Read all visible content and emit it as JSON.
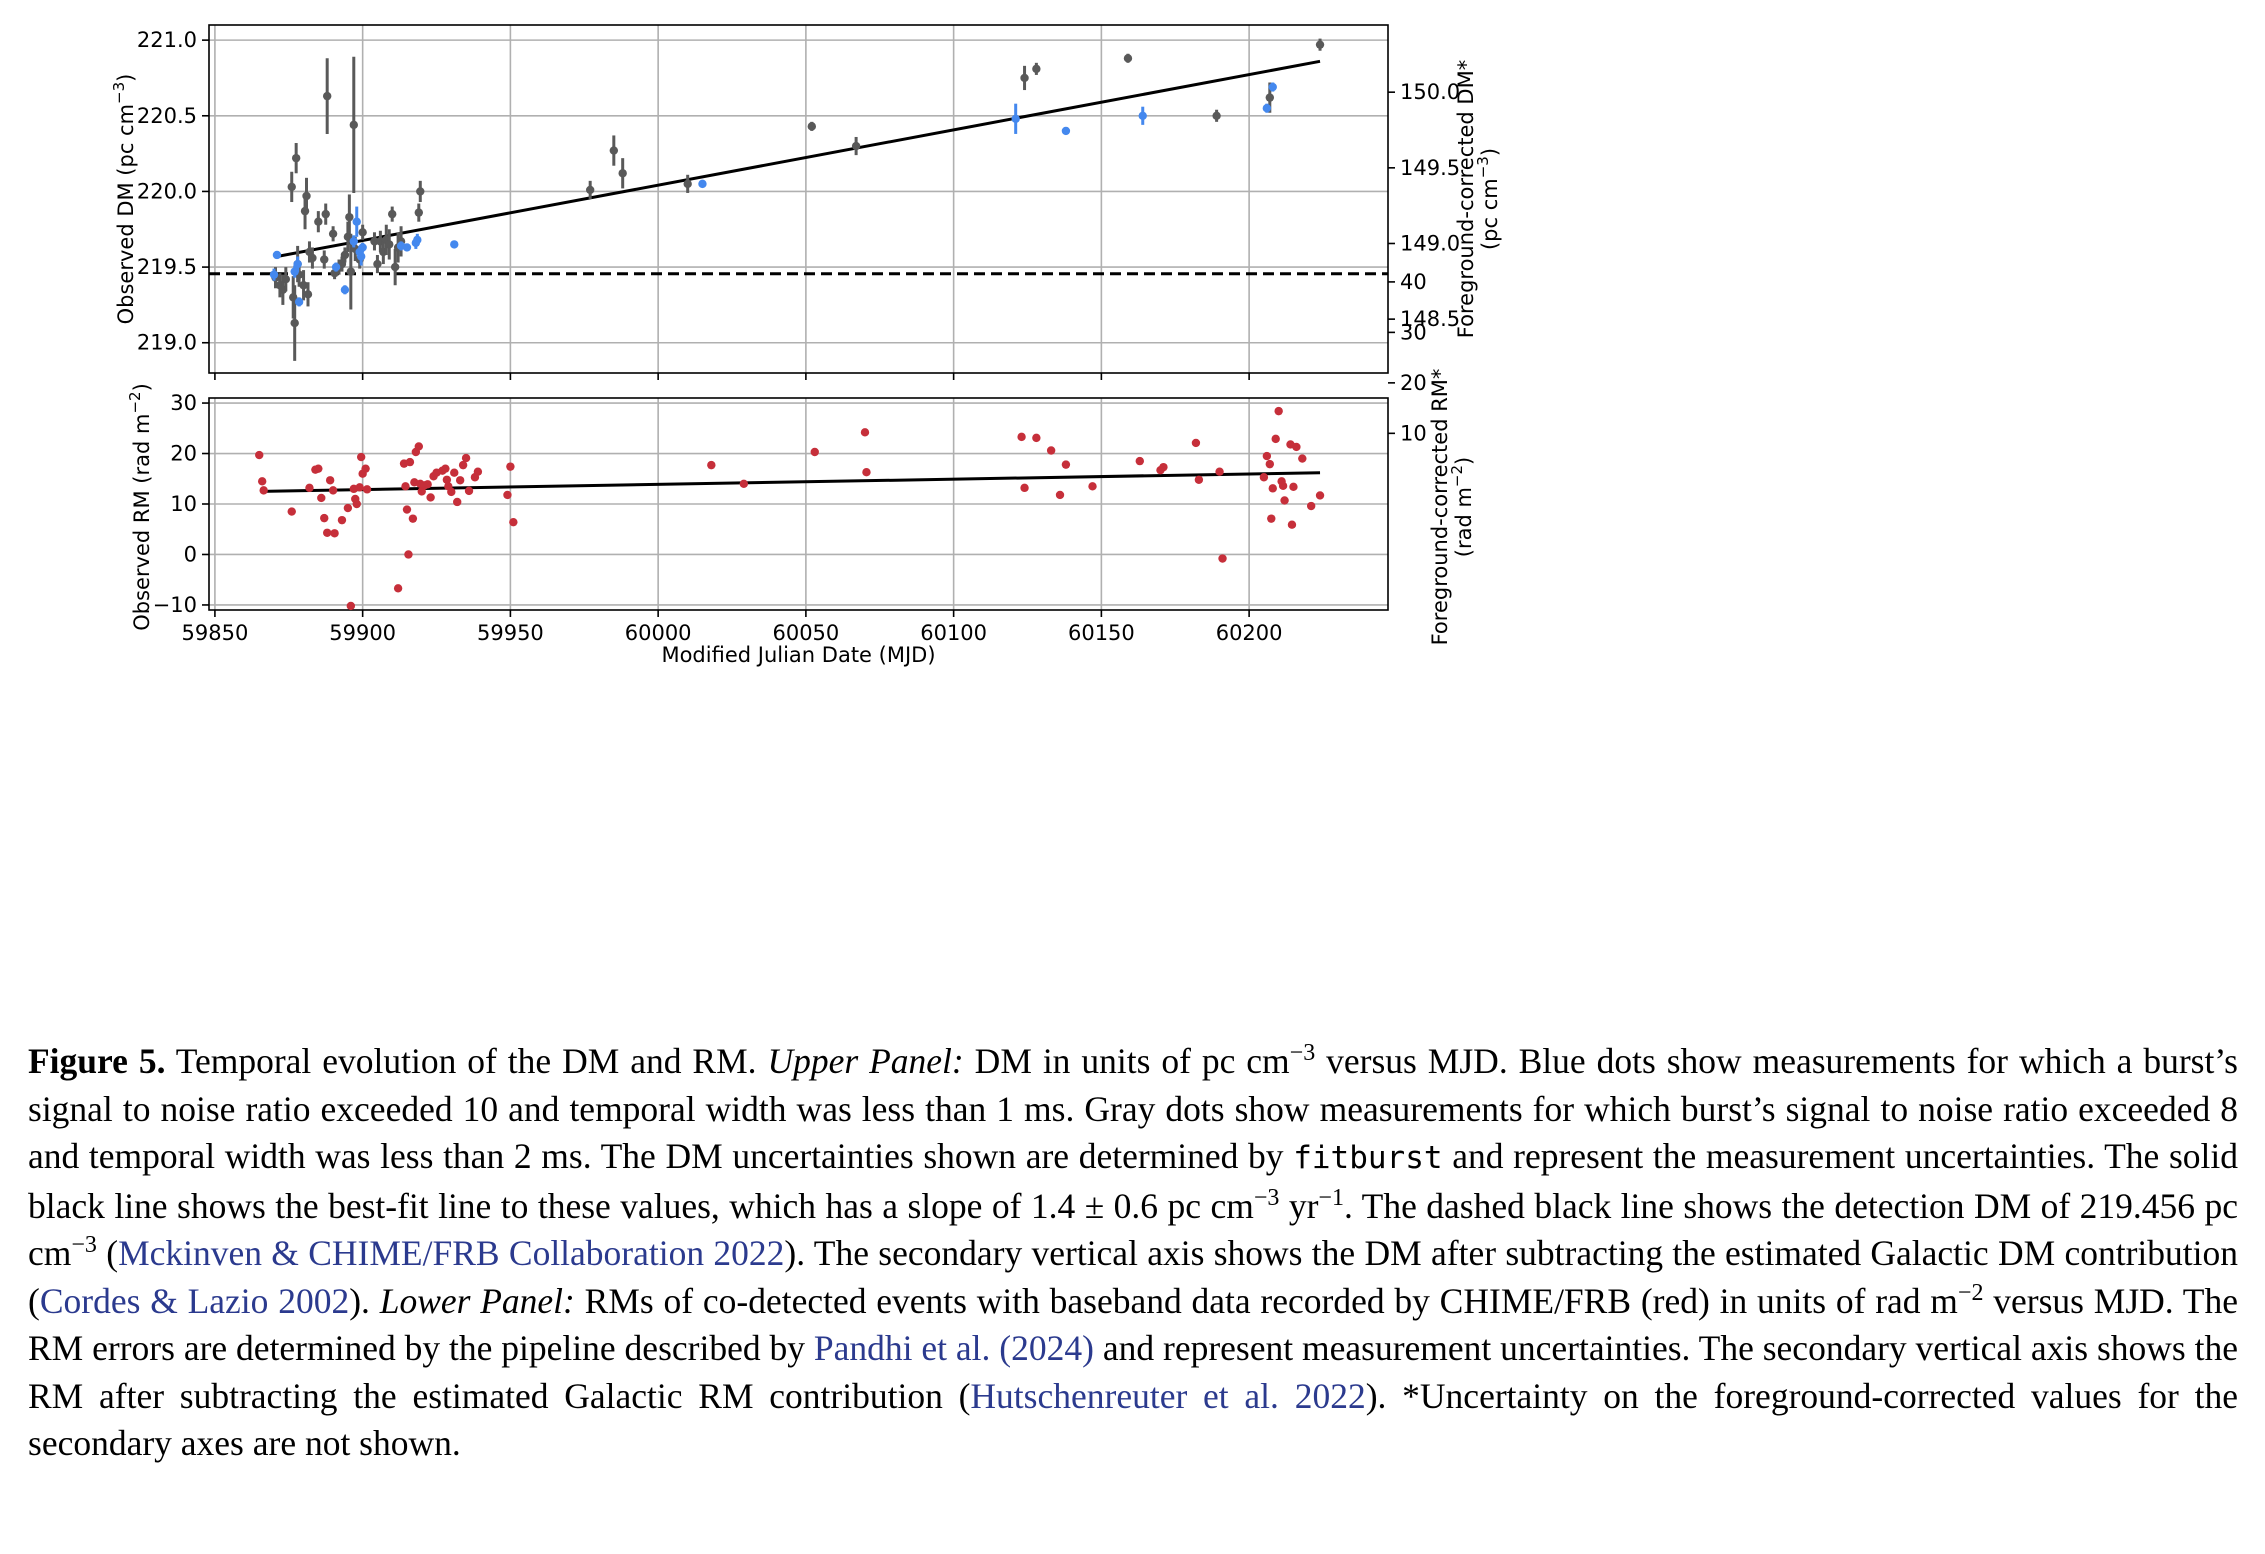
{
  "chart_data": [
    {
      "type": "scatter",
      "panel": "upper",
      "ylabel": "Observed DM (pc cm$^{-3}$)",
      "ylabel_parts": [
        "Observed DM (pc cm",
        "−3",
        ")"
      ],
      "ylabel_right_parts": [
        "Foreground-corrected DM*",
        "(pc cm",
        "−3",
        ")"
      ],
      "xlim": [
        59848,
        60247
      ],
      "ylim": [
        218.8,
        221.1
      ],
      "ylim_right": [
        148.8,
        150.4
      ],
      "right_axis_offset": 70.656,
      "yticks": [
        "219.0",
        "219.5",
        "220.0",
        "220.5",
        "221.0"
      ],
      "yticks_right": [
        "148.5",
        "149.0",
        "149.5",
        "150.0"
      ],
      "grid": true,
      "colors": {
        "blue": "#4488ee",
        "gray": "#595959",
        "fit": "#000000",
        "dashed": "#000000"
      },
      "fit_line": {
        "x": [
          59871,
          60224
        ],
        "y": [
          219.57,
          220.86
        ],
        "slope": "1.4 ± 0.6 pc cm^-3 yr^-1"
      },
      "detection_dm": 219.456,
      "series": [
        {
          "color": "gray",
          "points": [
            [
              59870.5,
              219.43,
              0.07
            ],
            [
              59872,
              219.38,
              0.08
            ],
            [
              59873,
              219.35,
              0.1
            ],
            [
              59874,
              219.42,
              0.08
            ],
            [
              59876,
              220.03,
              0.1
            ],
            [
              59876.5,
              219.3,
              0.14
            ],
            [
              59877,
              219.13,
              0.25
            ],
            [
              59877.5,
              220.22,
              0.1
            ],
            [
              59878,
              219.52,
              0.12
            ],
            [
              59878.5,
              219.45,
              0.08
            ],
            [
              59880,
              219.38,
              0.1
            ],
            [
              59880.5,
              219.87,
              0.12
            ],
            [
              59881,
              219.97,
              0.12
            ],
            [
              59881.5,
              219.32,
              0.08
            ],
            [
              59882,
              219.6,
              0.07
            ],
            [
              59883,
              219.56,
              0.07
            ],
            [
              59885,
              219.8,
              0.07
            ],
            [
              59887,
              219.55,
              0.06
            ],
            [
              59887.5,
              219.85,
              0.07
            ],
            [
              59888,
              220.63,
              0.25
            ],
            [
              59890,
              219.72,
              0.05
            ],
            [
              59890.5,
              219.46,
              0.04
            ],
            [
              59892,
              219.5,
              0.05
            ],
            [
              59893,
              219.52,
              0.05
            ],
            [
              59894,
              219.58,
              0.05
            ],
            [
              59895,
              219.7,
              0.1
            ],
            [
              59895.5,
              219.83,
              0.15
            ],
            [
              59896,
              219.47,
              0.25
            ],
            [
              59897,
              220.44,
              0.45
            ],
            [
              59897.5,
              219.62,
              0.08
            ],
            [
              59899,
              219.55,
              0.06
            ],
            [
              59900,
              219.73,
              0.05
            ],
            [
              59904,
              219.67,
              0.06
            ],
            [
              59905,
              219.52,
              0.06
            ],
            [
              59906,
              219.67,
              0.07
            ],
            [
              59907,
              219.6,
              0.08
            ],
            [
              59908,
              219.68,
              0.1
            ],
            [
              59909,
              219.65,
              0.1
            ],
            [
              59910,
              219.85,
              0.05
            ],
            [
              59911,
              219.5,
              0.12
            ],
            [
              59912,
              219.63,
              0.1
            ],
            [
              59913,
              219.67,
              0.1
            ],
            [
              59919,
              219.86,
              0.06
            ],
            [
              59919.5,
              220.0,
              0.07
            ],
            [
              59977,
              220.01,
              0.06
            ],
            [
              59985,
              220.27,
              0.1
            ],
            [
              59988,
              220.12,
              0.1
            ],
            [
              60010,
              220.05,
              0.06
            ],
            [
              60052,
              220.43,
              0.03
            ],
            [
              60067,
              220.3,
              0.06
            ],
            [
              60124,
              220.75,
              0.08
            ],
            [
              60128,
              220.81,
              0.04
            ],
            [
              60159,
              220.88,
              0.03
            ],
            [
              60189,
              220.5,
              0.04
            ],
            [
              60207,
              220.62,
              0.1
            ],
            [
              60224,
              220.97,
              0.04
            ]
          ]
        },
        {
          "color": "blue",
          "points": [
            [
              59870,
              219.45,
              0.04
            ],
            [
              59871,
              219.58,
              0.02
            ],
            [
              59877,
              219.47,
              0.04
            ],
            [
              59878,
              219.52,
              0.05
            ],
            [
              59878.5,
              219.27,
              0.03
            ],
            [
              59891,
              219.5,
              0.03
            ],
            [
              59894,
              219.35,
              0.03
            ],
            [
              59897,
              219.67,
              0.04
            ],
            [
              59898,
              219.8,
              0.1
            ],
            [
              59899,
              219.6,
              0.04
            ],
            [
              59899.5,
              219.57,
              0.06
            ],
            [
              59900,
              219.63,
              0.03
            ],
            [
              59913,
              219.64,
              0.03
            ],
            [
              59915,
              219.63,
              0.02
            ],
            [
              59918,
              219.66,
              0.04
            ],
            [
              59918.5,
              219.68,
              0.04
            ],
            [
              59931,
              219.65,
              0.02
            ],
            [
              60015,
              220.05,
              0.02
            ],
            [
              60121,
              220.48,
              0.1
            ],
            [
              60138,
              220.4,
              0.02
            ],
            [
              60164,
              220.5,
              0.06
            ],
            [
              60206,
              220.55,
              0.03
            ],
            [
              60208,
              220.69,
              0.03
            ]
          ]
        }
      ]
    },
    {
      "type": "scatter",
      "panel": "lower",
      "ylabel_parts": [
        "Observed RM (rad m",
        "−2",
        ")"
      ],
      "ylabel_right_parts": [
        "Foreground-corrected RM*",
        "(rad m",
        "−2",
        ")"
      ],
      "xlabel": "Modified Julian Date (MJD)",
      "xlim": [
        59848,
        60247
      ],
      "xticks": [
        "59850",
        "59900",
        "59950",
        "60000",
        "60050",
        "60100",
        "60150",
        "60200"
      ],
      "ylim": [
        -11,
        31
      ],
      "ylim_right": [
        3,
        45
      ],
      "right_axis_offset": 14,
      "yticks": [
        "−10",
        "0",
        "10",
        "20",
        "30"
      ],
      "yticks_right": [
        "10",
        "20",
        "30",
        "40"
      ],
      "grid": true,
      "colors": {
        "red": "#c62f3a",
        "fit": "#000000"
      },
      "fit_line": {
        "x": [
          59866,
          60224
        ],
        "y": [
          12.5,
          16.2
        ]
      },
      "series": [
        {
          "color": "red",
          "points": [
            [
              59865,
              19.7
            ],
            [
              59866,
              14.5
            ],
            [
              59866.5,
              12.7
            ],
            [
              59876,
              8.5
            ],
            [
              59882,
              13.2
            ],
            [
              59884,
              16.8
            ],
            [
              59885,
              17
            ],
            [
              59886,
              11.2
            ],
            [
              59887,
              7.2
            ],
            [
              59888,
              4.3
            ],
            [
              59889,
              14.7
            ],
            [
              59890,
              12.7
            ],
            [
              59890.5,
              4.2
            ],
            [
              59893,
              6.8
            ],
            [
              59895,
              9.2
            ],
            [
              59896,
              -10.2
            ],
            [
              59897,
              13
            ],
            [
              59897.5,
              11
            ],
            [
              59898,
              10
            ],
            [
              59899,
              13.3
            ],
            [
              59899.5,
              19.3
            ],
            [
              59900,
              16
            ],
            [
              59901,
              17
            ],
            [
              59901.5,
              12.9
            ],
            [
              59912,
              -6.7
            ],
            [
              59914,
              18
            ],
            [
              59914.5,
              13.5
            ],
            [
              59915,
              8.9
            ],
            [
              59915.5,
              0
            ],
            [
              59916,
              18.3
            ],
            [
              59917,
              7.1
            ],
            [
              59917.5,
              14.3
            ],
            [
              59918,
              20.3
            ],
            [
              59919,
              21.4
            ],
            [
              59919.5,
              14
            ],
            [
              59920,
              12.5
            ],
            [
              59921,
              13.7
            ],
            [
              59922,
              13.9
            ],
            [
              59923,
              11.3
            ],
            [
              59924,
              15.5
            ],
            [
              59925,
              16.2
            ],
            [
              59927,
              16.6
            ],
            [
              59928,
              17
            ],
            [
              59928.5,
              14.8
            ],
            [
              59929,
              13.5
            ],
            [
              59930,
              12.4
            ],
            [
              59931,
              16.2
            ],
            [
              59932,
              10.4
            ],
            [
              59933,
              14.7
            ],
            [
              59934,
              17.7
            ],
            [
              59935,
              19.1
            ],
            [
              59936,
              12.6
            ],
            [
              59938,
              15.3
            ],
            [
              59939,
              16.4
            ],
            [
              59949,
              11.8
            ],
            [
              59950,
              17.4
            ],
            [
              59951,
              6.4
            ],
            [
              60018,
              17.7
            ],
            [
              60029,
              14
            ],
            [
              60053,
              20.3
            ],
            [
              60070,
              24.2
            ],
            [
              60070.5,
              16.3
            ],
            [
              60123,
              23.3
            ],
            [
              60124,
              13.2
            ],
            [
              60128,
              23.1
            ],
            [
              60133,
              20.6
            ],
            [
              60136,
              11.8
            ],
            [
              60138,
              17.8
            ],
            [
              60147,
              13.5
            ],
            [
              60163,
              18.5
            ],
            [
              60170,
              16.7
            ],
            [
              60171,
              17.3
            ],
            [
              60182,
              22.1
            ],
            [
              60183,
              14.8
            ],
            [
              60190,
              16.4
            ],
            [
              60191,
              -0.8
            ],
            [
              60205,
              15.3
            ],
            [
              60206,
              19.5
            ],
            [
              60207,
              17.9
            ],
            [
              60207.5,
              7.1
            ],
            [
              60208,
              13.1
            ],
            [
              60209,
              22.9
            ],
            [
              60210,
              28.4
            ],
            [
              60211,
              14.5
            ],
            [
              60211.5,
              13.6
            ],
            [
              60212,
              10.7
            ],
            [
              60214,
              21.8
            ],
            [
              60214.5,
              5.9
            ],
            [
              60215,
              13.4
            ],
            [
              60216,
              21.3
            ],
            [
              60218,
              19
            ],
            [
              60221,
              9.6
            ],
            [
              60224,
              11.7
            ]
          ]
        }
      ]
    }
  ],
  "caption": {
    "label": "Figure 5.",
    "s1": " Temporal evolution of the DM and RM. ",
    "upper": "Upper Panel:",
    "s2": " DM in units of pc cm",
    "sup_m3": "−3",
    "s3": " versus MJD. Blue dots show measurements for which a burst’s signal to noise ratio exceeded 10 and temporal width was less than 1 ms. Gray dots show measurements for which burst’s signal to noise ratio exceeded 8 and temporal width was less than 2 ms. The DM uncertainties shown are determined by ",
    "code": "fitburst",
    "s4": " and represent the measurement uncertainties. The solid black line shows the best-fit line to these values, which has a slope of 1.4 ± 0.6 pc cm",
    "sup_m3b": "−3",
    "s5": " yr",
    "sup_m1": "−1",
    "s6": ". The dashed black line shows the detection DM of 219.456 pc cm",
    "sup_m3c": "−3",
    "s7": " (",
    "cite1": "Mckinven & CHIME/FRB Collaboration 2022",
    "s8": "). The secondary vertical axis shows the DM after subtracting the estimated Galactic DM contribution (",
    "cite2": "Cordes & Lazio 2002",
    "s9": "). ",
    "lower": "Lower Panel:",
    "s10": " RMs of co-detected events with baseband data recorded by CHIME/FRB (red) in units of rad m",
    "sup_m2": "−2",
    "s11": " versus MJD. The RM errors are determined by the pipeline described by ",
    "cite3": "Pandhi et al. (2024)",
    "s12": " and represent measurement uncertainties. The secondary vertical axis shows the RM after subtracting the estimated Galactic RM contribution (",
    "cite4": "Hutschenreuter et al. 2022",
    "s13": "). *Uncertainty on the foreground-corrected values for the secondary axes are not shown."
  }
}
